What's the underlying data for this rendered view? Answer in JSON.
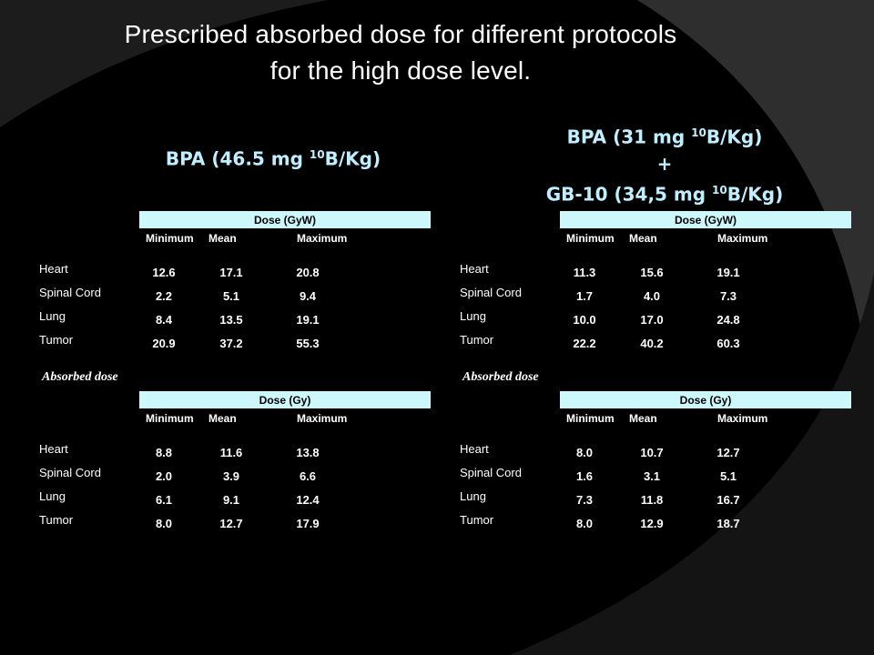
{
  "slide": {
    "title_line1": "Prescribed absorbed dose for different protocols",
    "title_line2": "for the high dose level."
  },
  "left_heading": {
    "prefix": "BPA (46.5 mg ",
    "sup": "10",
    "suffix": "B/Kg)"
  },
  "right_heading": {
    "line1_prefix": "BPA (31 mg ",
    "line1_sup": "10",
    "line1_suffix": "B/Kg)",
    "plus": "+",
    "line3_prefix": "GB-10 (34,5 mg ",
    "line3_sup": "10",
    "line3_suffix": "B/Kg)"
  },
  "columns": [
    "Minimum",
    "Mean",
    "Maximum"
  ],
  "rows": [
    "Heart",
    "Spinal Cord",
    "Lung",
    "Tumor"
  ],
  "caption": "Absorbed dose",
  "tables": {
    "left_gyw": {
      "header": "Dose (GyW)",
      "values": [
        [
          "12.6",
          "17.1",
          "20.8"
        ],
        [
          "2.2",
          "5.1",
          "9.4"
        ],
        [
          "8.4",
          "13.5",
          "19.1"
        ],
        [
          "20.9",
          "37.2",
          "55.3"
        ]
      ]
    },
    "right_gyw": {
      "header": "Dose (GyW)",
      "values": [
        [
          "11.3",
          "15.6",
          "19.1"
        ],
        [
          "1.7",
          "4.0",
          "7.3"
        ],
        [
          "10.0",
          "17.0",
          "24.8"
        ],
        [
          "22.2",
          "40.2",
          "60.3"
        ]
      ]
    },
    "left_gy": {
      "header": "Dose (Gy)",
      "values": [
        [
          "8.8",
          "11.6",
          "13.8"
        ],
        [
          "2.0",
          "3.9",
          "6.6"
        ],
        [
          "6.1",
          "9.1",
          "12.4"
        ],
        [
          "8.0",
          "12.7",
          "17.9"
        ]
      ]
    },
    "right_gy": {
      "header": "Dose (Gy)",
      "values": [
        [
          "8.0",
          "10.7",
          "12.7"
        ],
        [
          "1.6",
          "3.1",
          "5.1"
        ],
        [
          "7.3",
          "11.8",
          "16.7"
        ],
        [
          "8.0",
          "12.9",
          "18.7"
        ]
      ]
    }
  }
}
